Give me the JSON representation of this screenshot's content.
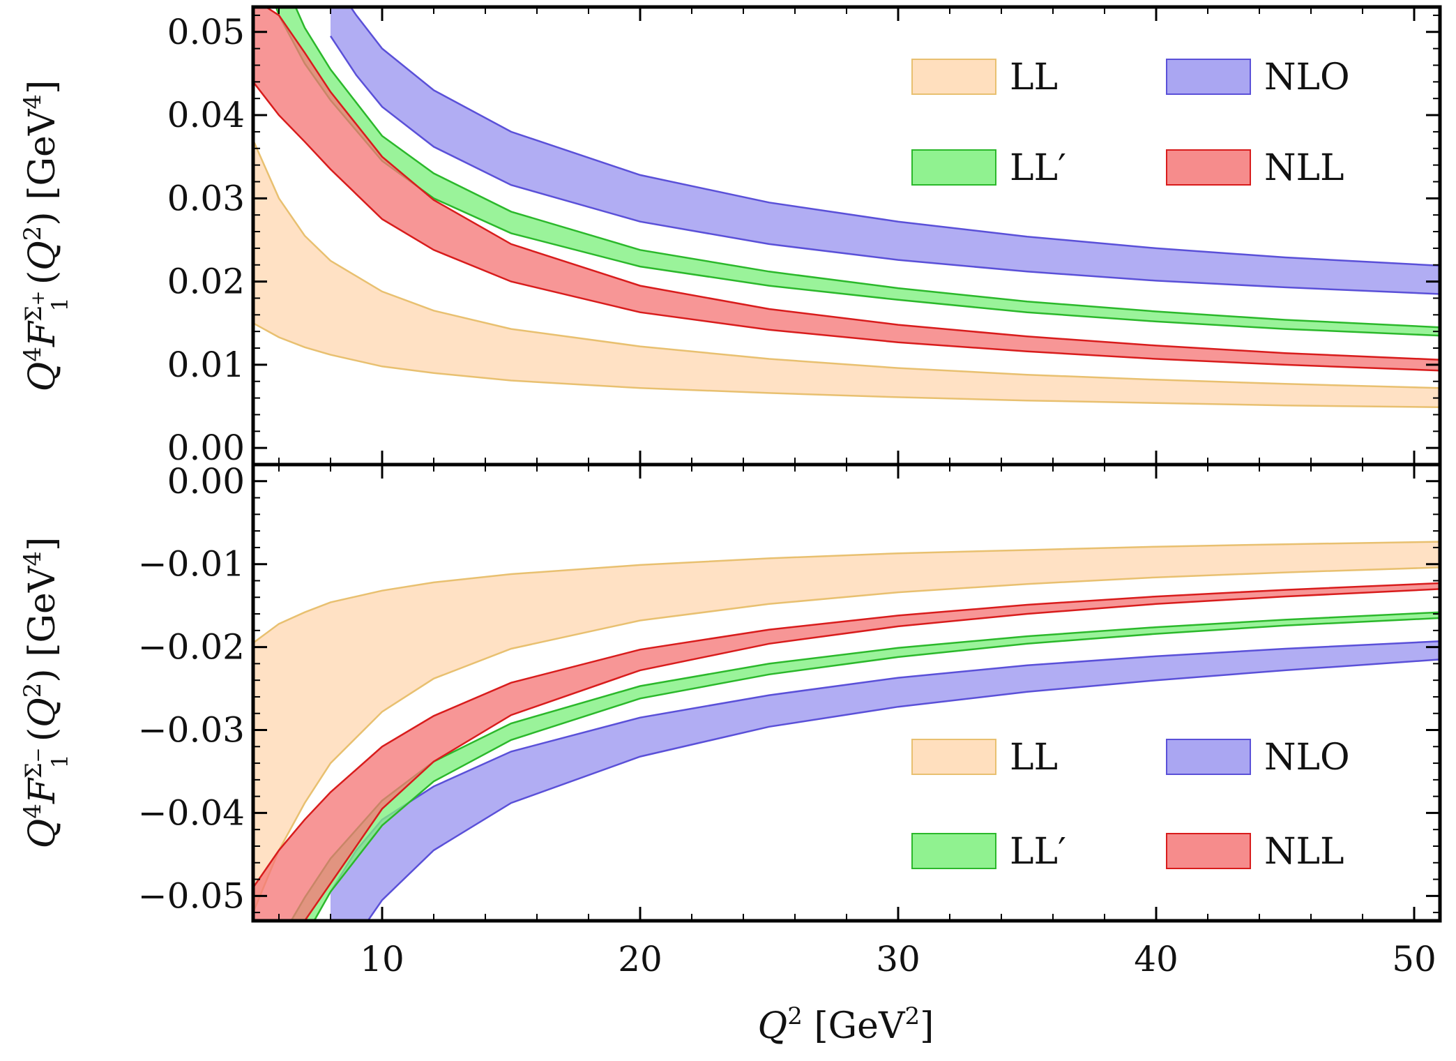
{
  "chart_data": [
    {
      "type": "area",
      "panel": "top",
      "ylabel": "Q⁴F₁^Σ⁺(Q²) [GeV⁴]",
      "xlim": [
        5,
        51
      ],
      "ylim": [
        -0.002,
        0.053
      ],
      "xticks": [
        "10",
        "20",
        "30",
        "40",
        "50"
      ],
      "yticks": [
        "0.00",
        "0.01",
        "0.02",
        "0.03",
        "0.04",
        "0.05"
      ],
      "ytick_values": [
        0.0,
        0.01,
        0.02,
        0.03,
        0.04,
        0.05
      ],
      "legend_position": "top-right",
      "series": [
        {
          "name": "LL",
          "color": "#ffd9b3",
          "stroke": "#e8c070",
          "x": [
            5,
            6,
            7,
            8,
            10,
            12,
            15,
            20,
            25,
            30,
            35,
            40,
            45,
            51
          ],
          "lower": [
            0.015,
            0.0133,
            0.0121,
            0.0112,
            0.0098,
            0.009,
            0.0081,
            0.0072,
            0.0066,
            0.0061,
            0.0057,
            0.0054,
            0.0051,
            0.0049
          ],
          "upper": [
            0.037,
            0.03,
            0.0255,
            0.0225,
            0.0188,
            0.0165,
            0.0143,
            0.0122,
            0.0107,
            0.0096,
            0.0088,
            0.0082,
            0.0077,
            0.0072
          ]
        },
        {
          "name": "NLO",
          "color": "#9b96f0",
          "stroke": "#5a50d8",
          "x": [
            8,
            9,
            10,
            12,
            15,
            20,
            25,
            30,
            35,
            40,
            45,
            51
          ],
          "lower": [
            0.0495,
            0.0448,
            0.041,
            0.0362,
            0.0316,
            0.0272,
            0.0245,
            0.0226,
            0.0212,
            0.0201,
            0.0193,
            0.0185
          ],
          "upper": [
            0.0565,
            0.052,
            0.048,
            0.043,
            0.038,
            0.0328,
            0.0295,
            0.0272,
            0.0254,
            0.024,
            0.0229,
            0.0219
          ]
        },
        {
          "name": "LL′",
          "color": "#7df07d",
          "stroke": "#2bb82b",
          "x": [
            5,
            6,
            7,
            8,
            10,
            12,
            15,
            20,
            25,
            30,
            35,
            40,
            45,
            51
          ],
          "lower": [
            0.061,
            0.052,
            0.0462,
            0.0418,
            0.0345,
            0.03,
            0.0258,
            0.0218,
            0.0195,
            0.0178,
            0.0163,
            0.0152,
            0.0143,
            0.0135
          ],
          "upper": [
            0.068,
            0.0575,
            0.0505,
            0.0455,
            0.0375,
            0.033,
            0.0284,
            0.0238,
            0.0212,
            0.0192,
            0.0176,
            0.0164,
            0.0154,
            0.0145
          ]
        },
        {
          "name": "NLL",
          "color": "#f57878",
          "stroke": "#d81c1c",
          "x": [
            5,
            6,
            7,
            8,
            10,
            12,
            15,
            20,
            25,
            30,
            35,
            40,
            45,
            51
          ],
          "lower": [
            0.044,
            0.04,
            0.0368,
            0.0335,
            0.0275,
            0.0238,
            0.02,
            0.0163,
            0.0142,
            0.0127,
            0.0116,
            0.0107,
            0.01,
            0.0093
          ],
          "upper": [
            0.054,
            0.052,
            0.0475,
            0.0428,
            0.035,
            0.0298,
            0.0245,
            0.0195,
            0.0167,
            0.0148,
            0.0134,
            0.0123,
            0.0114,
            0.0106
          ]
        }
      ]
    },
    {
      "type": "area",
      "panel": "bottom",
      "ylabel": "Q⁴F₁^Σ⁻(Q²) [GeV⁴]",
      "xlabel": "Q² [GeV²]",
      "xlim": [
        5,
        51
      ],
      "ylim": [
        -0.053,
        0.002
      ],
      "xticks": [
        "10",
        "20",
        "30",
        "40",
        "50"
      ],
      "xtick_values": [
        10,
        20,
        30,
        40,
        50
      ],
      "yticks": [
        "0.00",
        "−0.01",
        "−0.02",
        "−0.03",
        "−0.04",
        "−0.05"
      ],
      "ytick_values": [
        0.0,
        -0.01,
        -0.02,
        -0.03,
        -0.04,
        -0.05
      ],
      "legend_position": "bottom-right",
      "series": [
        {
          "name": "LL",
          "color": "#ffd9b3",
          "stroke": "#e8c070",
          "x": [
            5,
            6,
            7,
            8,
            10,
            12,
            15,
            20,
            25,
            30,
            35,
            40,
            45,
            51
          ],
          "lower": [
            -0.052,
            -0.0445,
            -0.0388,
            -0.034,
            -0.0278,
            -0.0238,
            -0.0202,
            -0.0168,
            -0.0148,
            -0.0134,
            -0.0124,
            -0.0116,
            -0.011,
            -0.0104
          ],
          "upper": [
            -0.0195,
            -0.0172,
            -0.0158,
            -0.0146,
            -0.0132,
            -0.0122,
            -0.0112,
            -0.0101,
            -0.0093,
            -0.0087,
            -0.0083,
            -0.0079,
            -0.0076,
            -0.0073
          ]
        },
        {
          "name": "NLO",
          "color": "#9b96f0",
          "stroke": "#5a50d8",
          "x": [
            8,
            9,
            10,
            12,
            15,
            20,
            25,
            30,
            35,
            40,
            45,
            51
          ],
          "lower": [
            -0.061,
            -0.055,
            -0.0505,
            -0.0445,
            -0.0388,
            -0.0332,
            -0.0296,
            -0.0272,
            -0.0254,
            -0.024,
            -0.0228,
            -0.0215
          ],
          "upper": [
            -0.0495,
            -0.0445,
            -0.0408,
            -0.0368,
            -0.0326,
            -0.0285,
            -0.0258,
            -0.0237,
            -0.0222,
            -0.0211,
            -0.0202,
            -0.0193
          ]
        },
        {
          "name": "LL′",
          "color": "#7df07d",
          "stroke": "#2bb82b",
          "x": [
            5,
            6,
            7,
            8,
            10,
            12,
            15,
            20,
            25,
            30,
            35,
            40,
            45,
            51
          ],
          "lower": [
            -0.07,
            -0.062,
            -0.055,
            -0.0495,
            -0.0415,
            -0.0362,
            -0.0312,
            -0.0262,
            -0.0233,
            -0.0212,
            -0.0196,
            -0.0184,
            -0.0174,
            -0.0165
          ],
          "upper": [
            -0.062,
            -0.0555,
            -0.0502,
            -0.0455,
            -0.0385,
            -0.0338,
            -0.0292,
            -0.0247,
            -0.022,
            -0.0201,
            -0.0187,
            -0.0176,
            -0.0167,
            -0.0158
          ]
        },
        {
          "name": "NLL",
          "color": "#f57878",
          "stroke": "#d81c1c",
          "x": [
            5,
            6,
            7,
            8,
            10,
            12,
            15,
            20,
            25,
            30,
            35,
            40,
            45,
            51
          ],
          "lower": [
            -0.0555,
            -0.054,
            -0.053,
            -0.0485,
            -0.0395,
            -0.0338,
            -0.0282,
            -0.0228,
            -0.0196,
            -0.0175,
            -0.016,
            -0.0148,
            -0.0139,
            -0.013
          ],
          "upper": [
            -0.049,
            -0.0445,
            -0.0408,
            -0.0375,
            -0.032,
            -0.0283,
            -0.0243,
            -0.0203,
            -0.0179,
            -0.0162,
            -0.0149,
            -0.0139,
            -0.0131,
            -0.0123
          ]
        }
      ]
    }
  ],
  "legend": {
    "entries": [
      {
        "key": "LL",
        "label": "LL",
        "color": "#ffd9b3",
        "stroke": "#e8c070"
      },
      {
        "key": "NLO",
        "label": "NLO",
        "color": "#9b96f0",
        "stroke": "#5a50d8"
      },
      {
        "key": "LLp",
        "label": "LL′",
        "color": "#7df07d",
        "stroke": "#2bb82b"
      },
      {
        "key": "NLL",
        "label": "NLL",
        "color": "#f57878",
        "stroke": "#d81c1c"
      }
    ]
  }
}
